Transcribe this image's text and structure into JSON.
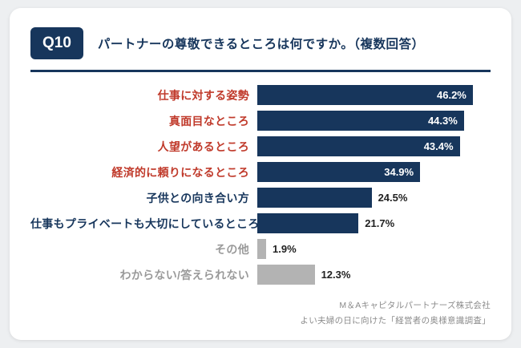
{
  "header": {
    "badge": "Q10",
    "question": "パートナーの尊敬できるところは何ですか。（複数回答）"
  },
  "chart_data": {
    "type": "bar",
    "orientation": "horizontal",
    "title": "パートナーの尊敬できるところは何ですか。（複数回答）",
    "categories": [
      "仕事に対する姿勢",
      "真面目なところ",
      "人望があるところ",
      "経済的に頼りになるところ",
      "子供との向き合い方",
      "仕事もプライベートも大切にしているところ",
      "その他",
      "わからない/答えられない"
    ],
    "values": [
      46.2,
      44.3,
      43.4,
      34.9,
      24.5,
      21.7,
      1.9,
      12.3
    ],
    "value_suffix": "%",
    "xlim": [
      0,
      50
    ],
    "grid": false,
    "legend": false,
    "bar_colors": [
      "navy",
      "navy",
      "navy",
      "navy",
      "navy",
      "navy",
      "gray",
      "gray"
    ],
    "label_colors": [
      "red",
      "red",
      "red",
      "red",
      "navy",
      "navy",
      "gray",
      "gray"
    ],
    "colors": {
      "navy": "#17365c",
      "red": "#c03a2b",
      "gray": "#b3b3b3",
      "label_gray": "#9a9a9a"
    }
  },
  "footer": {
    "line1": "M＆Aキャピタルパートナーズ株式会社",
    "line2": "よい夫婦の日に向けた「経営者の奥様意識調査」"
  }
}
